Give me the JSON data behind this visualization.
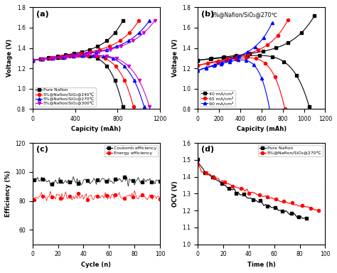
{
  "fig_width": 4.74,
  "fig_height": 3.84,
  "dpi": 100,
  "background": "#ffffff",
  "panel_a": {
    "label": "(a)",
    "xlabel": "Capicity (mAh)",
    "ylabel": "Voltage (V)",
    "xlim": [
      0,
      1200
    ],
    "ylim": [
      0.8,
      1.8
    ],
    "yticks": [
      0.8,
      1.0,
      1.2,
      1.4,
      1.6,
      1.8
    ],
    "xticks": [
      0,
      400,
      800,
      1200
    ],
    "title_text": "",
    "series": [
      {
        "label": "Pure Nafion",
        "color": "#000000",
        "marker": "s",
        "charge_end": 850,
        "discharge_end": 850,
        "charge_max_cap": 850,
        "discharge_max_cap": 850
      },
      {
        "label": "5%@Nafion/SiO₂@240℃",
        "color": "#ff0000",
        "marker": "o",
        "charge_end": 1000,
        "discharge_end": 950,
        "charge_max_cap": 1000,
        "discharge_max_cap": 950
      },
      {
        "label": "5%@Nafion/SiO₂@270℃",
        "color": "#0000ff",
        "marker": "^",
        "charge_end": 1100,
        "discharge_end": 1050,
        "charge_max_cap": 1100,
        "discharge_max_cap": 1050
      },
      {
        "label": "5%@Nafion/SiO₂@300℃",
        "color": "#cc00cc",
        "marker": "v",
        "charge_end": 1150,
        "discharge_end": 1100,
        "charge_max_cap": 1150,
        "discharge_max_cap": 1100
      }
    ]
  },
  "panel_b": {
    "label": "(b)",
    "xlabel": "Capicity (mAh)",
    "ylabel": "Voltage (V)",
    "xlim": [
      0,
      1200
    ],
    "ylim": [
      0.8,
      1.8
    ],
    "yticks": [
      0.8,
      1.0,
      1.2,
      1.4,
      1.6,
      1.8
    ],
    "xticks": [
      0,
      200,
      400,
      600,
      800,
      1000,
      1200
    ],
    "title_text": "5%@Nafion/SiO₂@270℃",
    "series": [
      {
        "label": "40 mA/cm²",
        "color": "#000000",
        "marker": "s",
        "charge_end": 1100,
        "discharge_end": 1050
      },
      {
        "label": "65 mA/cm²",
        "color": "#ff0000",
        "marker": "o",
        "charge_end": 850,
        "discharge_end": 820
      },
      {
        "label": "90 mA/cm²",
        "color": "#0000ff",
        "marker": "^",
        "charge_end": 700,
        "discharge_end": 680
      }
    ]
  },
  "panel_c": {
    "label": "(c)",
    "xlabel": "Cycle (n)",
    "ylabel": "Efficiency (%)",
    "xlim": [
      0,
      100
    ],
    "ylim": [
      50,
      120
    ],
    "yticks": [
      60,
      80,
      100,
      120
    ],
    "xticks": [
      0,
      20,
      40,
      60,
      80,
      100
    ],
    "series": [
      {
        "label": "Coulomb efficiency",
        "color": "#000000",
        "marker": "s",
        "mean": 94,
        "noise": 1.5
      },
      {
        "label": "Energy efficiency",
        "color": "#ff0000",
        "marker": "o",
        "mean": 83,
        "noise": 1.5
      }
    ]
  },
  "panel_d": {
    "label": "(d)",
    "xlabel": "Time (h)",
    "ylabel": "OCV (V)",
    "xlim": [
      0,
      100
    ],
    "ylim": [
      1.0,
      1.6
    ],
    "yticks": [
      1.0,
      1.1,
      1.2,
      1.3,
      1.4,
      1.5,
      1.6
    ],
    "xticks": [
      0,
      20,
      40,
      60,
      80,
      100
    ],
    "series": [
      {
        "label": "Pure Nafion",
        "color": "#000000",
        "marker": "s",
        "end_time": 85
      },
      {
        "label": "5%@Nafion/SiO₂@270℃",
        "color": "#ff0000",
        "marker": "o",
        "end_time": 95
      }
    ]
  }
}
